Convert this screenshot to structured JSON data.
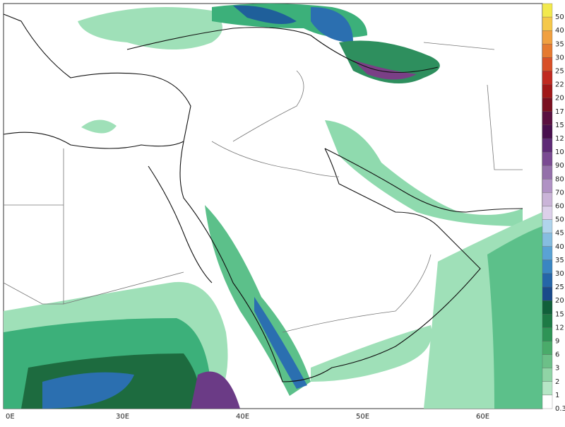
{
  "map": {
    "x_axis_labels": [
      "0E",
      "30E",
      "40E",
      "50E",
      "60E"
    ],
    "colorbar_labels": [
      "50",
      "40",
      "35",
      "30",
      "25",
      "22",
      "20",
      "17",
      "15",
      "12",
      "10",
      "90",
      "80",
      "70",
      "60",
      "50",
      "45",
      "40",
      "35",
      "30",
      "25",
      "20",
      "15",
      "12",
      "9",
      "6",
      "3",
      "2",
      "1",
      "0.3"
    ]
  }
}
